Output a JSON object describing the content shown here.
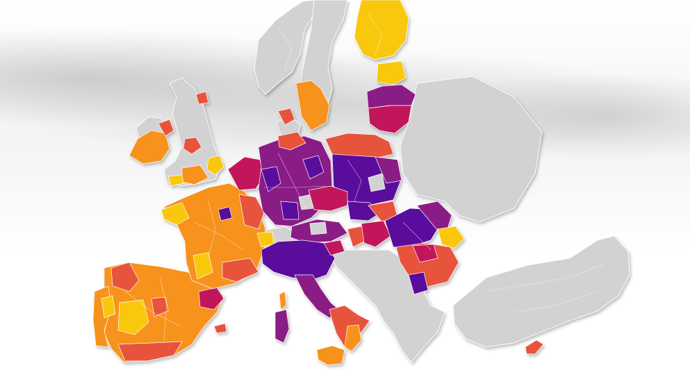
{
  "legend_colors": {
    "very_high": "#5a0f9c",
    "high": "#8a1a86",
    "elevated": "#c2185b",
    "moderate": "#e8533b",
    "low": "#f7921e",
    "very_low": "#f9c80e",
    "no_data": "#d2d2d2"
  }
}
